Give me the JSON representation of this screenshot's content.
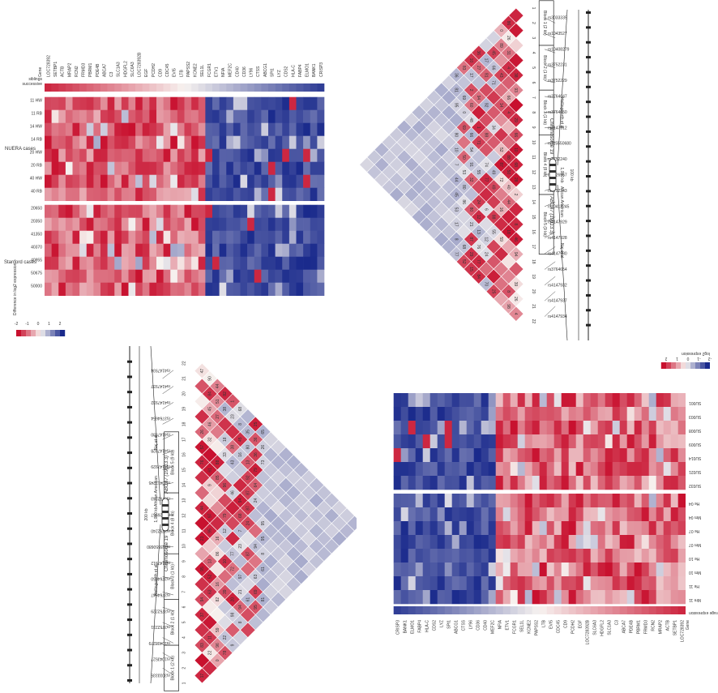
{
  "panels": {
    "tl": {
      "header_labels": [
        "successive",
        "siblings"
      ],
      "group_a_label": "NUERA cases",
      "group_b_label": "Stanford cases",
      "group_a_rows": [
        "11 HW",
        "11 RB",
        "14 HW",
        "14 RB",
        "20 HW",
        "20 RB",
        "40 HW",
        "40 RB"
      ],
      "group_b_rows": [
        "20650",
        "20350",
        "41350",
        "40370",
        "40955",
        "50675",
        "50000"
      ],
      "gene_header": "Gene",
      "genes": [
        "LOC728392",
        "SETBP1",
        "ACTB",
        "MRAP2",
        "RCN2",
        "FRMD3",
        "PBRM1",
        "PDE4B",
        "ABCA7",
        "C3",
        "SLC1A3",
        "HDGFL2",
        "SLC6A3",
        "LOC728392B",
        "EGF",
        "PCDH2",
        "CD9",
        "CDC45",
        "EVI5",
        "LTB",
        "PAPSS2",
        "KCNE2",
        "SEL1L",
        "FCGR1",
        "ETV1",
        "NFIA",
        "MEF2C",
        "CD40",
        "CD36",
        "LY96",
        "CTSS",
        "ABCG1",
        "SPI1",
        "LYZ",
        "CDS2",
        "HLA-C",
        "FABP4",
        "ELMO1",
        "BANK1",
        "CRISP3"
      ],
      "legend_title": "Difference in log2 expression",
      "legend_ticks": [
        "-2",
        "-1",
        "0",
        "1",
        "2"
      ]
    },
    "tr": {
      "chrom_label": "Chromosome 19",
      "gene_label": "ABCA7 (19p13.3)",
      "scale_a": "100 kb",
      "scale_b": "1,000 kb",
      "scale_c": "200 kb",
      "annot_1": "Hollingworth et al.",
      "annot_2": "African American",
      "annot_3": "Naj et al.",
      "blocks": [
        "Block 1 (2 kb)",
        "Block 2 (1 kb)",
        "Block 3 (1 kb)",
        "Block 4 (8 kb)",
        "Block 5 (9 kb)"
      ],
      "snps": [
        "rs3033335",
        "rs1043527",
        "rs10408279",
        "rs3752231",
        "rs3752229",
        "rs3764647",
        "rs3764650",
        "rs4147912",
        "rs115550680",
        "rs3752240",
        "rs3826957",
        "rs3752243",
        "rs10413245",
        "rs4147929",
        "rs4147928",
        "rs4147930",
        "rs3764654",
        "rs4147932",
        "rs4147937",
        "rs4147934"
      ],
      "positions": [
        "1",
        "2",
        "3",
        "4",
        "5",
        "6",
        "7",
        "8",
        "9",
        "10",
        "11",
        "12",
        "13",
        "14",
        "15",
        "16",
        "17",
        "18",
        "19",
        "20",
        "21",
        "22"
      ]
    },
    "bl": {
      "chrom_label": "Chromosome 19",
      "gene_label": "ABCA7 (19p13.3)",
      "scale_a": "200 kb",
      "scale_b": "1,000 kb",
      "annot_1": "Hollingworth et al.",
      "annot_2": "African American",
      "annot_3": "Naj et al.",
      "blocks": [
        "Block 1 (2 kb)",
        "Block 2 (1 kb)",
        "Block 3 (1 kb)",
        "Block 4 (8 kb)",
        "Block 5 (9 kb)"
      ],
      "snps": [
        "rs3033335",
        "rs1043527",
        "rs10408279",
        "rs3752231",
        "rs3752229",
        "rs3764647",
        "rs3764650",
        "rs4147912",
        "rs115550680",
        "rs3752240",
        "rs3826957",
        "rs3752243",
        "rs10413245",
        "rs4147929",
        "rs4147928",
        "rs4147930",
        "rs3764654",
        "rs4147932",
        "rs4147937",
        "rs4147934"
      ]
    },
    "br": {
      "rows_a": [
        "SU001",
        "SU003",
        "SU008",
        "SU009",
        "SU014",
        "SU021",
        "SU032"
      ],
      "rows_b": [
        "He 04",
        "Mm 04",
        "He 07",
        "Mm 07",
        "He 10",
        "Mm 10",
        "He 11",
        "Mm 11"
      ],
      "avg_label": "Average expression",
      "gene_header": "Gene",
      "genes": [
        "CRISP3",
        "BANK1",
        "ELMO1",
        "FABP4",
        "HLA-C",
        "CDS2",
        "LYZ",
        "SPI1",
        "ABCG1",
        "CTSS",
        "LY96",
        "CD36",
        "CD40",
        "MEF2C",
        "NFIA",
        "ETV1",
        "FCGR1",
        "SEL1L",
        "KCNE2",
        "PAPSS2",
        "LTB",
        "EVI5",
        "CDC45",
        "CD9",
        "PCDH2",
        "EGF",
        "LOC728392B",
        "SLC6A3",
        "HDGFL2",
        "SLC1A3",
        "C3",
        "ABCA7",
        "PDE4B",
        "PBRM1",
        "FRMD3",
        "RCN2",
        "MRAP2",
        "ACTB",
        "SETBP1",
        "LOC728392"
      ],
      "legend_title": "log2 expression",
      "legend_ticks": [
        "-2",
        "-1",
        "0",
        "1",
        "2"
      ]
    }
  },
  "colors": {
    "red": "#c8102e",
    "blue": "#1a2a8c",
    "white": "#f7f3f0",
    "line": "#333333"
  }
}
